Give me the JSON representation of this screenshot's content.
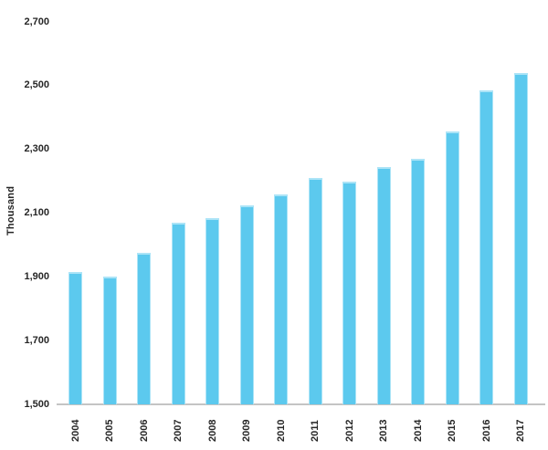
{
  "chart_data": {
    "type": "bar",
    "title": "",
    "xlabel": "",
    "ylabel": "Thousand",
    "categories": [
      "2004",
      "2005",
      "2006",
      "2007",
      "2008",
      "2009",
      "2010",
      "2011",
      "2012",
      "2013",
      "2014",
      "2015",
      "2016",
      "2017"
    ],
    "values": [
      1915,
      1900,
      1975,
      2070,
      2085,
      2125,
      2160,
      2210,
      2200,
      2245,
      2270,
      2355,
      2485,
      2540
    ],
    "ylim": [
      1500,
      2700
    ],
    "y_ticks": [
      {
        "value": 2700,
        "label": "2,700"
      },
      {
        "value": 2500,
        "label": "2,500"
      },
      {
        "value": 2300,
        "label": "2,300"
      },
      {
        "value": 2100,
        "label": "2,100"
      },
      {
        "value": 1900,
        "label": "1,900"
      },
      {
        "value": 1700,
        "label": "1,700"
      },
      {
        "value": 1500,
        "label": "1,500"
      }
    ],
    "grid": false,
    "legend_position": "none",
    "colors": {
      "bar_fill": "#5CC9EE",
      "bar_edge": "#ACE4F7",
      "axis_line": "#C4C4C4",
      "tick_text": "#262626"
    }
  }
}
